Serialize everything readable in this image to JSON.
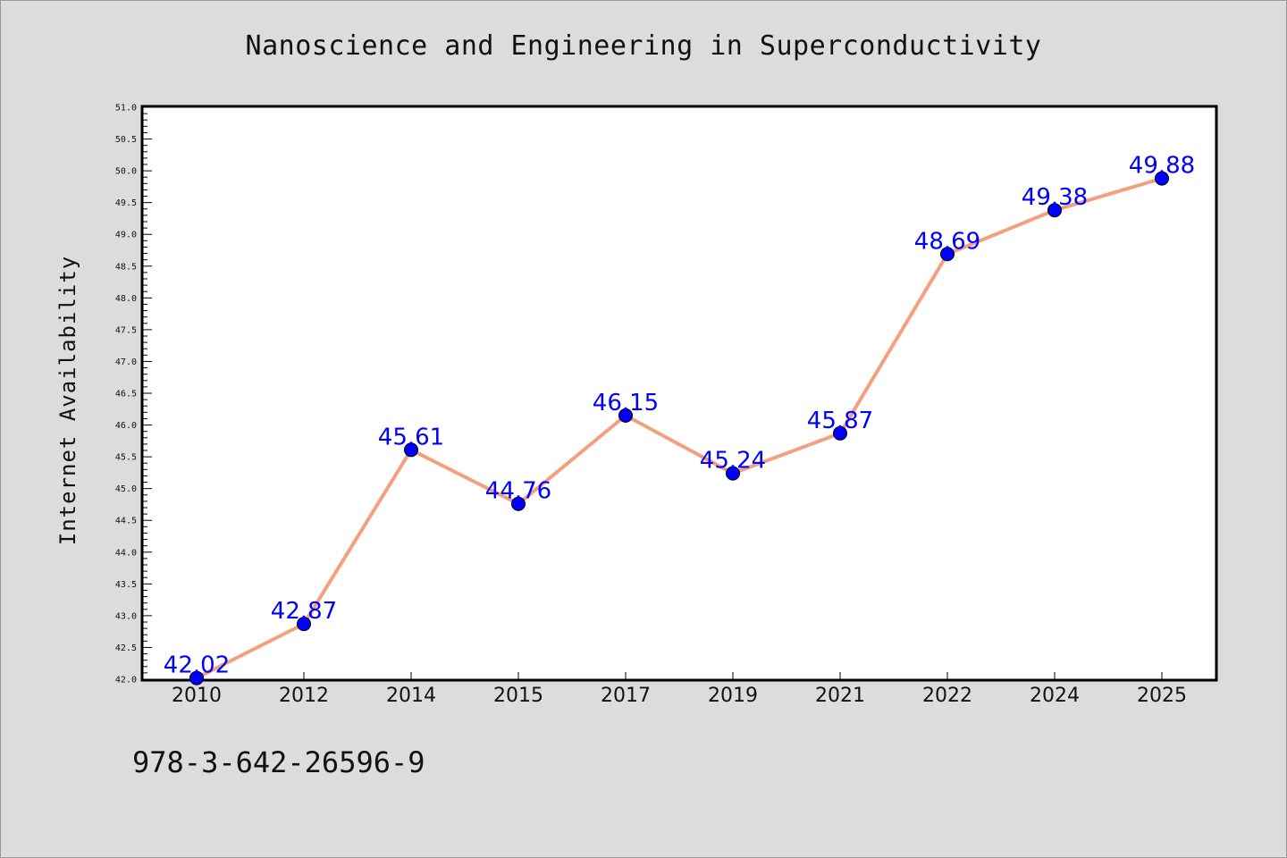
{
  "chart_data": {
    "type": "line",
    "title": "Nanoscience and Engineering in Superconductivity",
    "xlabel": "",
    "ylabel": "Internet Availability",
    "categories": [
      "2010",
      "2012",
      "2014",
      "2015",
      "2017",
      "2019",
      "2021",
      "2022",
      "2024",
      "2025"
    ],
    "values": [
      42.02,
      42.87,
      45.61,
      44.76,
      46.15,
      45.24,
      45.87,
      48.69,
      49.38,
      49.88
    ],
    "data_labels": [
      "42.02",
      "42.87",
      "45.61",
      "44.76",
      "46.15",
      "45.24",
      "45.87",
      "48.69",
      "49.38",
      "49.88"
    ],
    "ylim": [
      42.0,
      51.0
    ],
    "yticks": [
      "42.0",
      "42.5",
      "43.0",
      "43.5",
      "44.0",
      "44.5",
      "45.0",
      "45.5",
      "46.0",
      "46.5",
      "47.0",
      "47.5",
      "48.0",
      "48.5",
      "49.0",
      "49.5",
      "50.0",
      "50.5",
      "51.0"
    ],
    "grid": false,
    "line_color": "#f4a07e",
    "marker_color": "#0000ff",
    "label_color": "#0000ff"
  },
  "footer": {
    "code": "978-3-642-26596-9"
  }
}
